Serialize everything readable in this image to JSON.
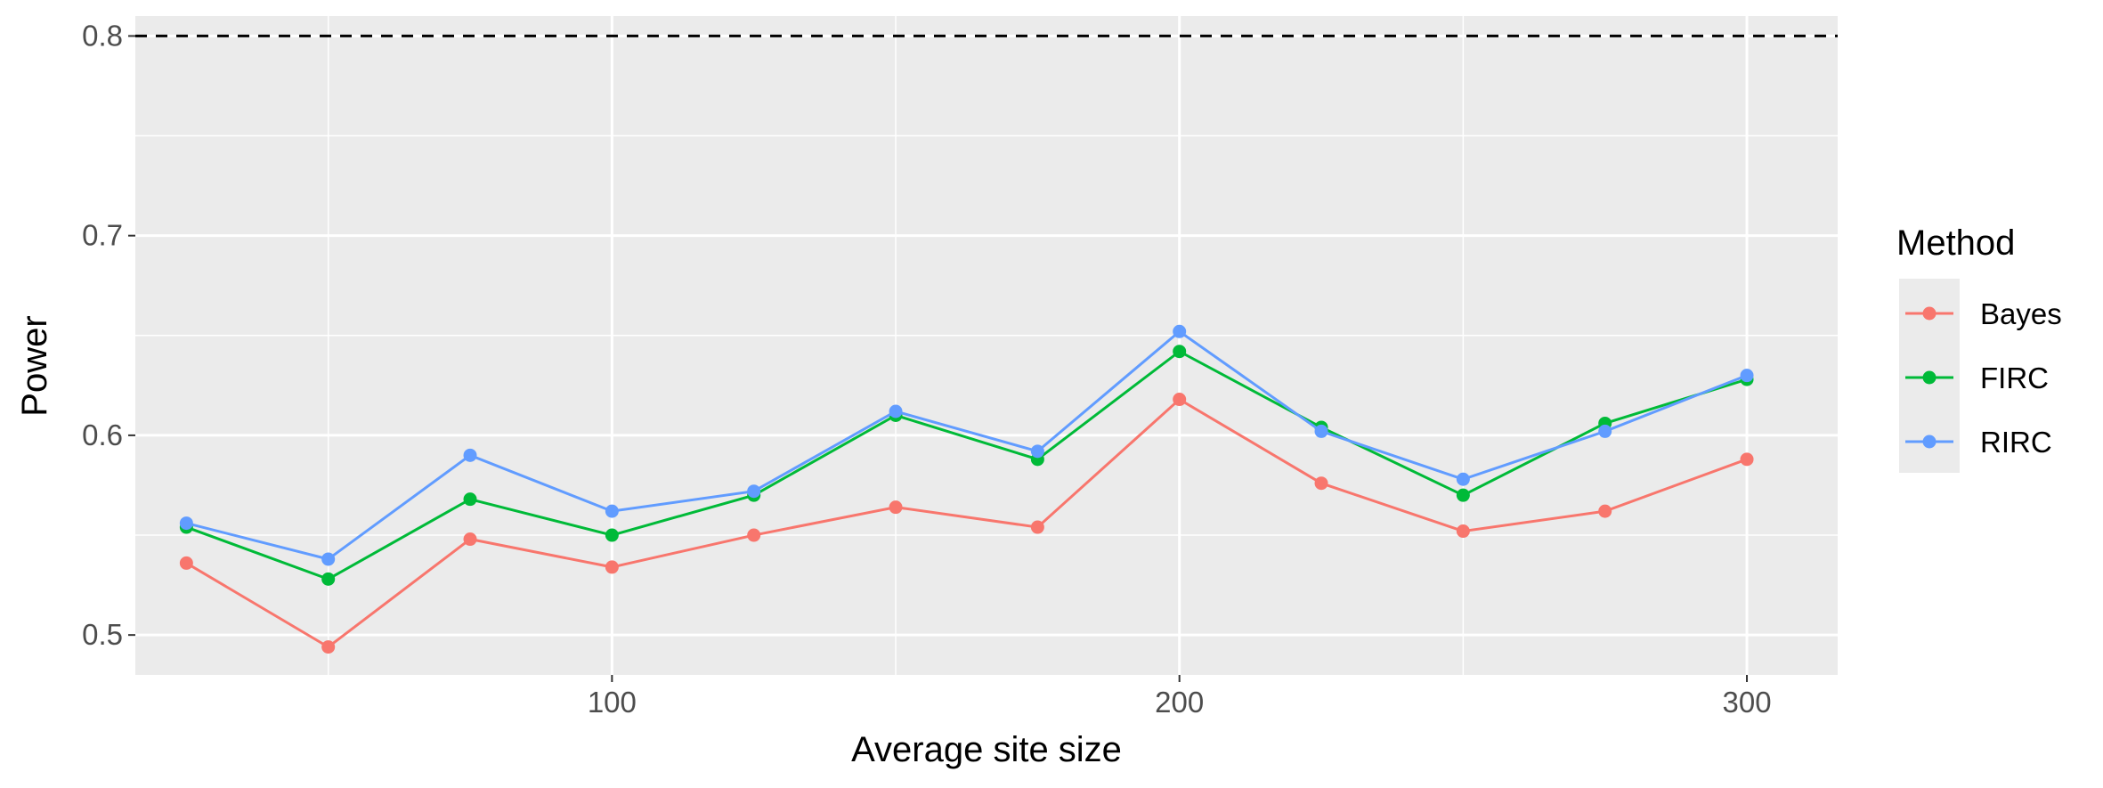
{
  "chart_data": {
    "type": "line",
    "title": "",
    "xlabel": "Average site size",
    "ylabel": "Power",
    "xlim": [
      16,
      316
    ],
    "ylim": [
      0.48,
      0.81
    ],
    "x_ticks": [
      100,
      200,
      300
    ],
    "y_ticks": [
      0.5,
      0.6,
      0.7,
      0.8
    ],
    "x_tick_labels": [
      "100",
      "200",
      "300"
    ],
    "y_tick_labels": [
      "0.5",
      "0.6",
      "0.7",
      "0.8"
    ],
    "grid": true,
    "reference_line": {
      "y": 0.8,
      "style": "dashed",
      "color": "#000000"
    },
    "legend": {
      "title": "Method",
      "placement": "right"
    },
    "x": [
      25,
      50,
      75,
      100,
      125,
      150,
      175,
      200,
      225,
      250,
      275,
      300
    ],
    "series": [
      {
        "name": "Bayes",
        "color": "#F8766D",
        "values": [
          0.536,
          0.494,
          0.548,
          0.534,
          0.55,
          0.564,
          0.554,
          0.618,
          0.576,
          0.552,
          0.562,
          0.588
        ]
      },
      {
        "name": "FIRC",
        "color": "#00BA38",
        "values": [
          0.554,
          0.528,
          0.568,
          0.55,
          0.57,
          0.61,
          0.588,
          0.642,
          0.604,
          0.57,
          0.606,
          0.628
        ]
      },
      {
        "name": "RIRC",
        "color": "#619CFF",
        "values": [
          0.556,
          0.538,
          0.59,
          0.562,
          0.572,
          0.612,
          0.592,
          0.652,
          0.602,
          0.578,
          0.602,
          0.63
        ]
      }
    ]
  }
}
